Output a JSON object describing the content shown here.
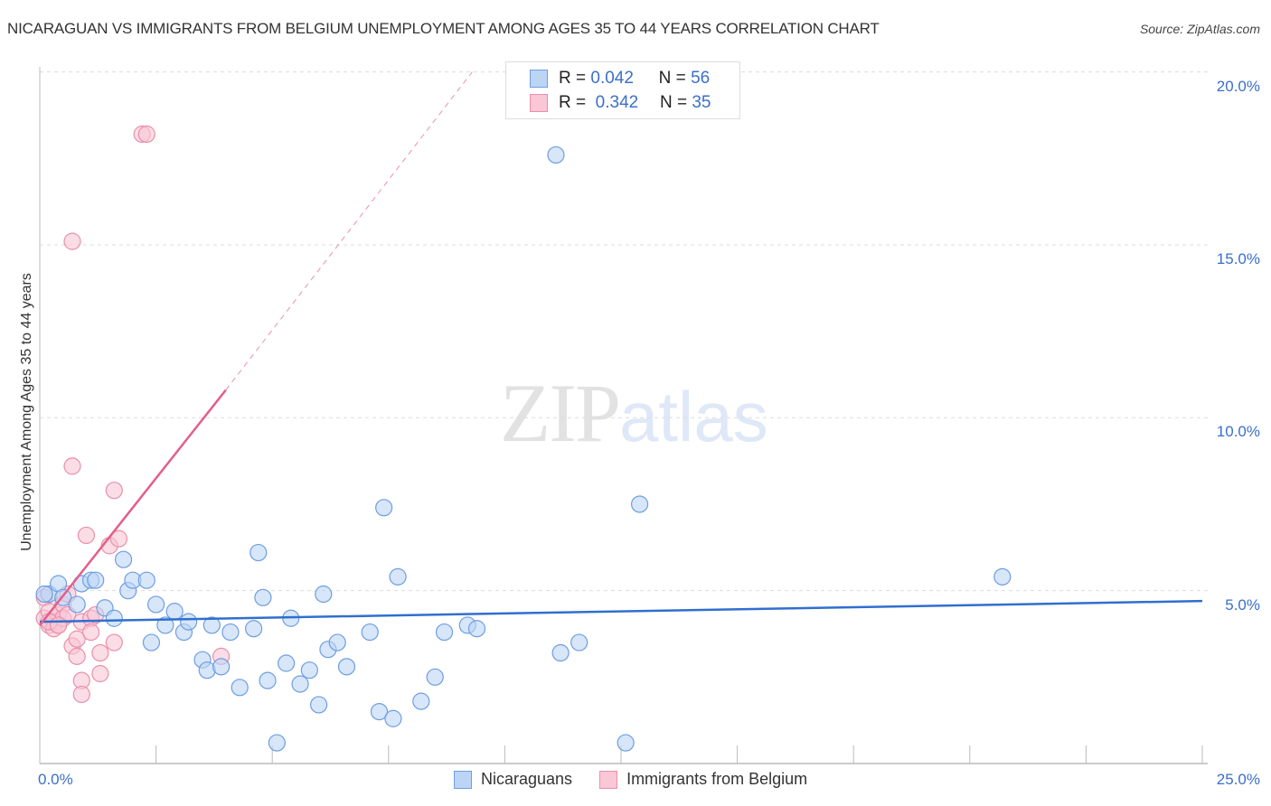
{
  "header": {
    "title": "NICARAGUAN VS IMMIGRANTS FROM BELGIUM UNEMPLOYMENT AMONG AGES 35 TO 44 YEARS CORRELATION CHART",
    "source": "Source: ZipAtlas.com"
  },
  "legend": {
    "rows": [
      {
        "r_label": "R =",
        "r_value": "0.042",
        "n_label": "N =",
        "n_value": "56",
        "color": "#bcd5f5"
      },
      {
        "r_label": "R =",
        "r_value": "0.342",
        "n_label": "N =",
        "n_value": "35",
        "color": "#f9c7d6"
      }
    ],
    "series": [
      "Nicaraguans",
      "Immigrants from Belgium"
    ]
  },
  "axes": {
    "y_label": "Unemployment Among Ages 35 to 44 years",
    "y_ticks": [
      "20.0%",
      "15.0%",
      "10.0%",
      "5.0%"
    ],
    "x_ticks": [
      "0.0%",
      "25.0%"
    ]
  },
  "watermark": {
    "zip": "ZIP",
    "atlas": "atlas"
  },
  "colors": {
    "blue_fill": "#bcd5f5",
    "blue_stroke": "#6e9ee0",
    "blue_line": "#2f6fcf",
    "pink_fill": "#f9c7d6",
    "pink_stroke": "#ea8fac",
    "pink_line": "#e2608a",
    "tick_text": "#3b6fc9"
  },
  "chart_data": {
    "type": "scatter",
    "title": "NICARAGUAN VS IMMIGRANTS FROM BELGIUM UNEMPLOYMENT AMONG AGES 35 TO 44 YEARS CORRELATION CHART",
    "xlabel": "",
    "ylabel": "Unemployment Among Ages 35 to 44 years",
    "xlim": [
      0,
      25
    ],
    "ylim": [
      0,
      20.5
    ],
    "x_unit": "%",
    "y_unit": "%",
    "grid": true,
    "legend_position": "top-center",
    "series": [
      {
        "name": "Nicaraguans",
        "R": 0.042,
        "N": 56,
        "trend": {
          "x0": 0,
          "y0": 4.1,
          "x1": 25,
          "y1": 4.7
        },
        "points": [
          [
            0.2,
            4.9
          ],
          [
            0.4,
            5.2
          ],
          [
            0.5,
            4.8
          ],
          [
            0.8,
            4.6
          ],
          [
            0.9,
            5.2
          ],
          [
            1.1,
            5.3
          ],
          [
            1.2,
            5.3
          ],
          [
            1.4,
            4.5
          ],
          [
            1.6,
            4.2
          ],
          [
            1.8,
            5.9
          ],
          [
            1.9,
            5.0
          ],
          [
            2.0,
            5.3
          ],
          [
            2.3,
            5.3
          ],
          [
            2.4,
            3.5
          ],
          [
            2.5,
            4.6
          ],
          [
            2.7,
            4.0
          ],
          [
            2.9,
            4.4
          ],
          [
            3.1,
            3.8
          ],
          [
            3.2,
            4.1
          ],
          [
            3.5,
            3.0
          ],
          [
            3.6,
            2.7
          ],
          [
            3.7,
            4.0
          ],
          [
            3.9,
            2.8
          ],
          [
            4.1,
            3.8
          ],
          [
            4.3,
            2.2
          ],
          [
            4.6,
            3.9
          ],
          [
            4.7,
            6.1
          ],
          [
            4.8,
            4.8
          ],
          [
            4.9,
            2.4
          ],
          [
            5.1,
            0.6
          ],
          [
            5.3,
            2.9
          ],
          [
            5.4,
            4.2
          ],
          [
            5.6,
            2.3
          ],
          [
            5.8,
            2.7
          ],
          [
            6.0,
            1.7
          ],
          [
            6.1,
            4.9
          ],
          [
            6.2,
            3.3
          ],
          [
            6.4,
            3.5
          ],
          [
            6.6,
            2.8
          ],
          [
            7.1,
            3.8
          ],
          [
            7.3,
            1.5
          ],
          [
            7.4,
            7.4
          ],
          [
            7.6,
            1.3
          ],
          [
            7.7,
            5.4
          ],
          [
            8.2,
            1.8
          ],
          [
            8.5,
            2.5
          ],
          [
            8.7,
            3.8
          ],
          [
            9.2,
            4.0
          ],
          [
            9.4,
            3.9
          ],
          [
            11.2,
            3.2
          ],
          [
            11.1,
            17.6
          ],
          [
            11.6,
            3.5
          ],
          [
            12.6,
            0.6
          ],
          [
            12.9,
            7.5
          ],
          [
            20.7,
            5.4
          ],
          [
            0.1,
            4.9
          ]
        ]
      },
      {
        "name": "Immigrants from Belgium",
        "R": 0.342,
        "N": 35,
        "trend_solid": {
          "x0": 0,
          "y0": 4.0,
          "x1": 4.0,
          "y1": 10.8
        },
        "trend_dashed": {
          "x0": 4.0,
          "y0": 10.8,
          "x1": 9.3,
          "y1": 20.0
        },
        "points": [
          [
            0.1,
            4.8
          ],
          [
            0.1,
            4.2
          ],
          [
            0.2,
            4.0
          ],
          [
            0.2,
            4.4
          ],
          [
            0.3,
            4.1
          ],
          [
            0.3,
            3.9
          ],
          [
            0.4,
            4.3
          ],
          [
            0.4,
            4.0
          ],
          [
            0.5,
            4.6
          ],
          [
            0.5,
            4.2
          ],
          [
            0.6,
            4.9
          ],
          [
            0.6,
            4.3
          ],
          [
            0.7,
            3.4
          ],
          [
            0.7,
            15.1
          ],
          [
            0.8,
            3.6
          ],
          [
            0.8,
            3.1
          ],
          [
            0.7,
            8.6
          ],
          [
            0.9,
            4.1
          ],
          [
            0.9,
            2.4
          ],
          [
            0.9,
            2.0
          ],
          [
            1.0,
            6.6
          ],
          [
            1.1,
            4.2
          ],
          [
            1.1,
            3.8
          ],
          [
            1.2,
            4.3
          ],
          [
            1.3,
            2.6
          ],
          [
            1.3,
            3.2
          ],
          [
            1.5,
            6.3
          ],
          [
            1.6,
            7.9
          ],
          [
            1.6,
            3.5
          ],
          [
            1.7,
            6.5
          ],
          [
            2.2,
            18.2
          ],
          [
            2.3,
            18.2
          ],
          [
            3.9,
            3.1
          ],
          [
            0.2,
            4.1
          ],
          [
            0.4,
            4.0
          ]
        ]
      }
    ]
  }
}
